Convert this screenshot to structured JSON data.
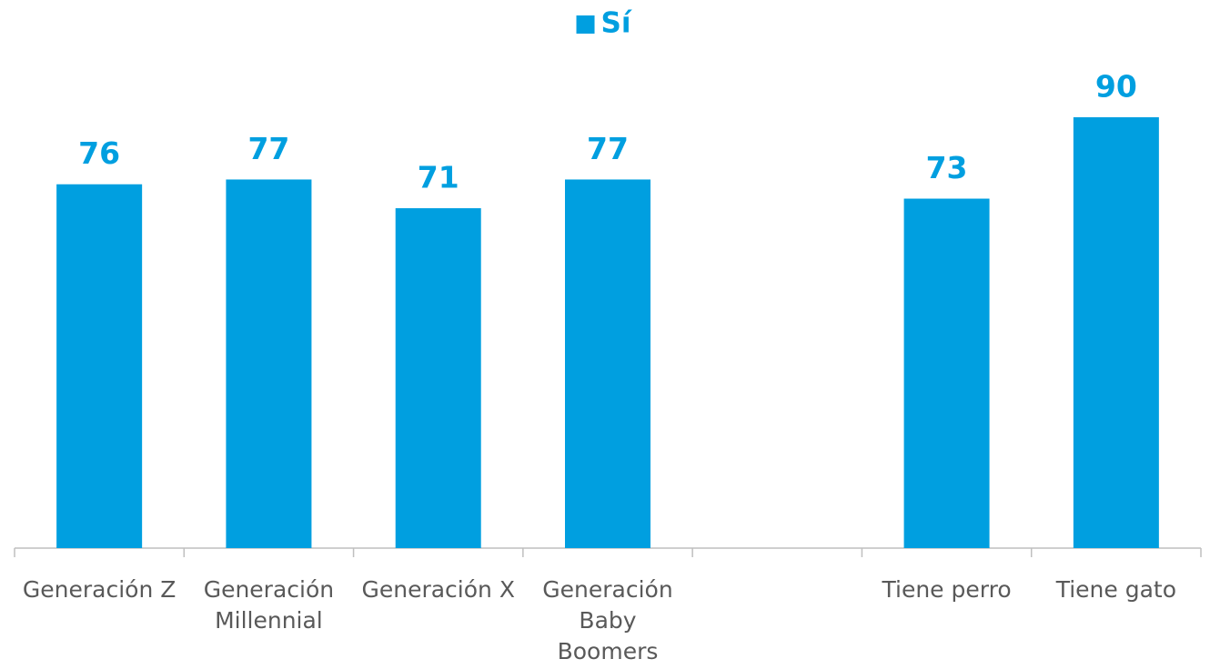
{
  "chart_data": {
    "type": "bar",
    "categories": [
      "Generación Z",
      "Generación Millennial",
      "Generación X",
      "Generación Baby Boomers",
      null,
      "Tiene perro",
      "Tiene gato"
    ],
    "series": [
      {
        "name": "Sí",
        "color": "#009fe0",
        "values": [
          76,
          77,
          71,
          77,
          null,
          73,
          90
        ]
      }
    ],
    "legend": "top"
  }
}
